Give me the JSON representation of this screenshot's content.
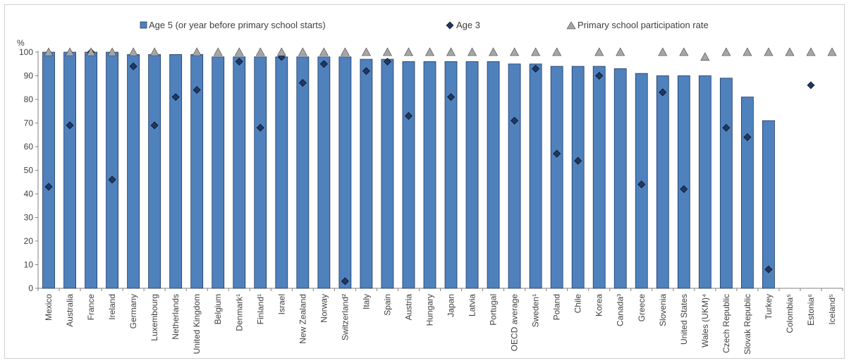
{
  "chart_data": {
    "type": "bar",
    "ylabel": "%",
    "ylim": [
      0,
      100
    ],
    "yticks": [
      0,
      10,
      20,
      30,
      40,
      50,
      60,
      70,
      80,
      90,
      100
    ],
    "grid": false,
    "legend_position": "top",
    "categories": [
      "Mexico",
      "Australia",
      "France",
      "Ireland",
      "Germany",
      "Luxembourg",
      "Netherlands",
      "United Kingdom",
      "Belgium",
      "Denmark¹",
      "Finland¹",
      "Israel",
      "New Zealand",
      "Norway",
      "Switzerland²",
      "Italy",
      "Spain",
      "Austria",
      "Hungary",
      "Japan",
      "Latvia",
      "Portugal",
      "OECD average",
      "Sweden¹",
      "Poland",
      "Chile",
      "Korea",
      "Canada³",
      "Greece",
      "Slovenia",
      "United States",
      "Wales (UKM)⁴",
      "Czech Republic",
      "Slovak Republic",
      "Turkey",
      "Colombia⁵",
      "Estonia⁶",
      "Iceland⁵"
    ],
    "series": [
      {
        "name": "Age 5 (or year before primary school starts)",
        "kind": "bar",
        "color": "#4f81bd",
        "values": [
          100,
          100,
          100,
          100,
          99,
          99,
          99,
          99,
          98,
          98,
          98,
          98,
          98,
          98,
          98,
          97,
          97,
          96,
          96,
          96,
          96,
          96,
          95,
          95,
          94,
          94,
          94,
          93,
          91,
          90,
          90,
          90,
          89,
          81,
          71,
          null,
          null,
          null
        ]
      },
      {
        "name": "Age 3",
        "kind": "diamond",
        "color": "#1f3864",
        "values": [
          43,
          69,
          100,
          46,
          94,
          69,
          81,
          84,
          null,
          96,
          68,
          98,
          87,
          95,
          3,
          92,
          96,
          73,
          null,
          81,
          null,
          null,
          71,
          93,
          57,
          54,
          90,
          null,
          44,
          83,
          42,
          null,
          68,
          64,
          8,
          null,
          86,
          null
        ]
      },
      {
        "name": "Primary school participation rate",
        "kind": "triangle",
        "color": "#a6a6a6",
        "values": [
          100,
          100,
          100,
          100,
          100,
          100,
          null,
          100,
          100,
          100,
          100,
          100,
          100,
          100,
          100,
          100,
          100,
          100,
          100,
          100,
          100,
          100,
          100,
          100,
          100,
          null,
          100,
          100,
          null,
          100,
          100,
          98,
          100,
          100,
          100,
          100,
          100,
          100
        ]
      }
    ]
  },
  "colors": {
    "bar": "#4f81bd",
    "bar_border": "#1f3864",
    "diamond": "#1f3864",
    "triangle": "#a6a6a6",
    "axis": "#808080"
  }
}
